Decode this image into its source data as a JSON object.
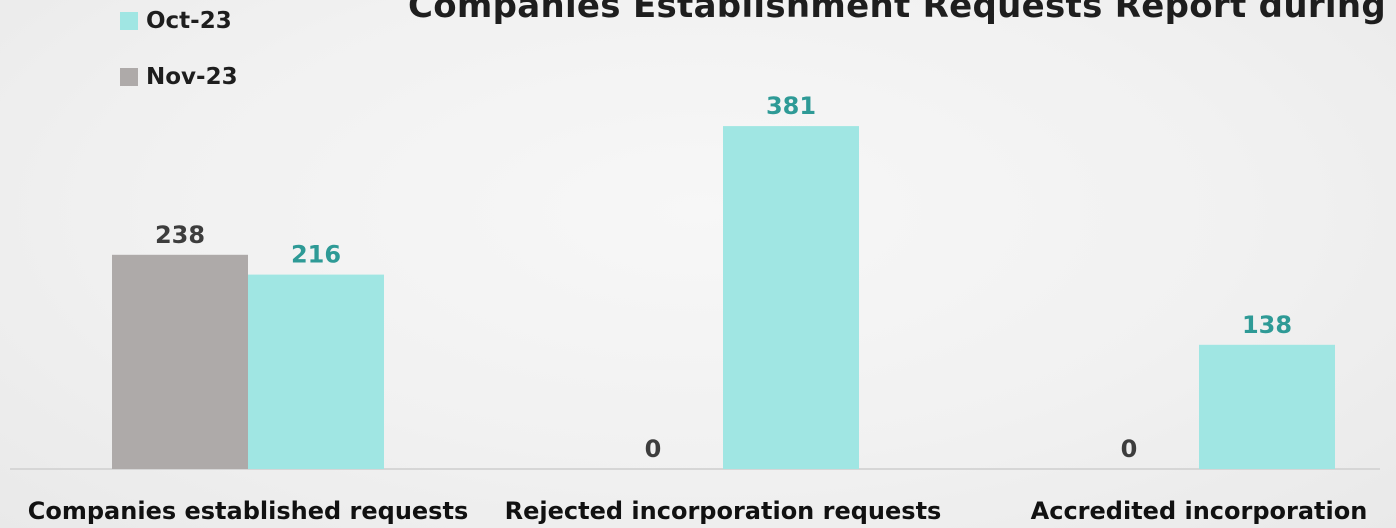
{
  "chart_data": {
    "type": "bar",
    "title": "Companies Establishment Requests Report during",
    "categories": [
      "Companies established requests",
      "Rejected incorporation requests",
      "Accredited incorporation"
    ],
    "series": [
      {
        "name": "Nov-23",
        "values": [
          238,
          0,
          0
        ],
        "color": "#aeaaa9",
        "label_color": "#3d3d3d"
      },
      {
        "name": "Oct-23",
        "values": [
          216,
          381,
          138
        ],
        "color": "#a0e6e3",
        "label_color": "#2e9a96"
      }
    ],
    "legend_order": [
      "Oct-23",
      "Nov-23"
    ],
    "ylim": [
      0,
      400
    ],
    "grid": false,
    "legend_position": "top-left"
  }
}
